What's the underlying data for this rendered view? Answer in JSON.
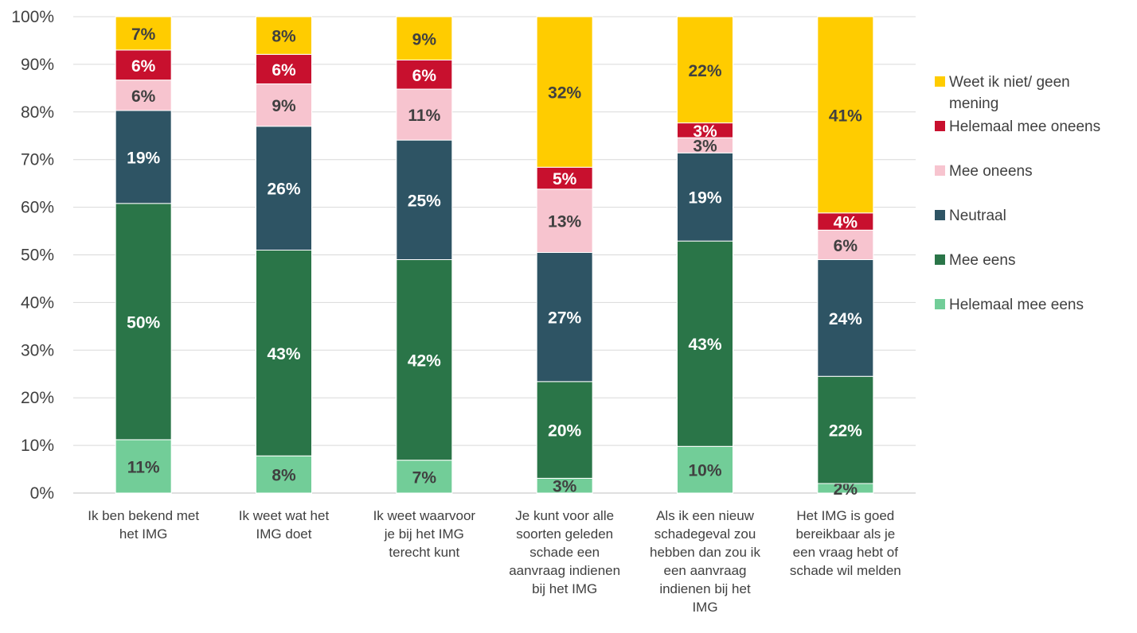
{
  "chart_data": {
    "type": "bar",
    "stacked": true,
    "orientation": "vertical",
    "title": "",
    "xlabel": "",
    "ylabel": "",
    "ylim": [
      0,
      100
    ],
    "y_ticks": [
      "0%",
      "10%",
      "20%",
      "30%",
      "40%",
      "50%",
      "60%",
      "70%",
      "80%",
      "90%",
      "100%"
    ],
    "grid": true,
    "legend_position": "right",
    "categories": [
      [
        "Ik ben bekend met",
        "het IMG"
      ],
      [
        "Ik weet wat het",
        "IMG doet"
      ],
      [
        "Ik weet waarvoor",
        "je bij het IMG",
        "terecht kunt"
      ],
      [
        "Je kunt voor alle",
        "soorten geleden",
        "schade een",
        "aanvraag indienen",
        "bij het IMG"
      ],
      [
        "Als ik een nieuw",
        "schadegeval zou",
        "hebben dan zou ik",
        "een aanvraag",
        "indienen bij het",
        "IMG"
      ],
      [
        "Het IMG is goed",
        "bereikbaar als je",
        "een vraag hebt of",
        "schade wil melden"
      ]
    ],
    "series": [
      {
        "name": "Helemaal mee eens",
        "color": "#72cd98",
        "label_color": "#404040",
        "values": [
          11.2,
          7.8,
          6.9,
          3.1,
          9.8,
          2.0
        ],
        "labels": [
          "11%",
          "8%",
          "7%",
          "3%",
          "10%",
          "2%"
        ]
      },
      {
        "name": "Mee eens",
        "color": "#2a7548",
        "label_color": "#ffffff",
        "values": [
          49.6,
          43.2,
          42.1,
          20.3,
          43.1,
          22.5
        ],
        "labels": [
          "50%",
          "43%",
          "42%",
          "20%",
          "43%",
          "22%"
        ]
      },
      {
        "name": "Neutraal",
        "color": "#2e5464",
        "label_color": "#ffffff",
        "values": [
          19.5,
          26.0,
          25.1,
          27.1,
          18.5,
          24.5
        ],
        "labels": [
          "19%",
          "26%",
          "25%",
          "27%",
          "19%",
          "24%"
        ]
      },
      {
        "name": "Mee oneens",
        "color": "#f7c4cf",
        "label_color": "#404040",
        "values": [
          6.4,
          8.9,
          10.7,
          13.3,
          3.2,
          6.2
        ],
        "labels": [
          "6%",
          "9%",
          "11%",
          "13%",
          "3%",
          "6%"
        ]
      },
      {
        "name": "Helemaal mee oneens",
        "color": "#c8102e",
        "label_color": "#ffffff",
        "values": [
          6.3,
          6.2,
          6.1,
          4.6,
          3.1,
          3.6
        ],
        "labels": [
          "6%",
          "6%",
          "6%",
          "5%",
          "3%",
          "4%"
        ]
      },
      {
        "name": "Weet ik niet/ geen mening",
        "color": "#ffcc00",
        "label_color": "#404040",
        "values": [
          7.0,
          7.9,
          9.1,
          31.6,
          22.3,
          41.2
        ],
        "labels": [
          "7%",
          "8%",
          "9%",
          "32%",
          "22%",
          "41%"
        ]
      }
    ],
    "legend": [
      {
        "label": [
          "Weet ik niet/ geen",
          "mening"
        ],
        "color": "#ffcc00"
      },
      {
        "label": [
          "Helemaal mee oneens"
        ],
        "color": "#c8102e"
      },
      {
        "label": [
          "Mee oneens"
        ],
        "color": "#f7c4cf"
      },
      {
        "label": [
          "Neutraal"
        ],
        "color": "#2e5464"
      },
      {
        "label": [
          "Mee eens"
        ],
        "color": "#2a7548"
      },
      {
        "label": [
          "Helemaal mee eens"
        ],
        "color": "#72cd98"
      }
    ]
  }
}
